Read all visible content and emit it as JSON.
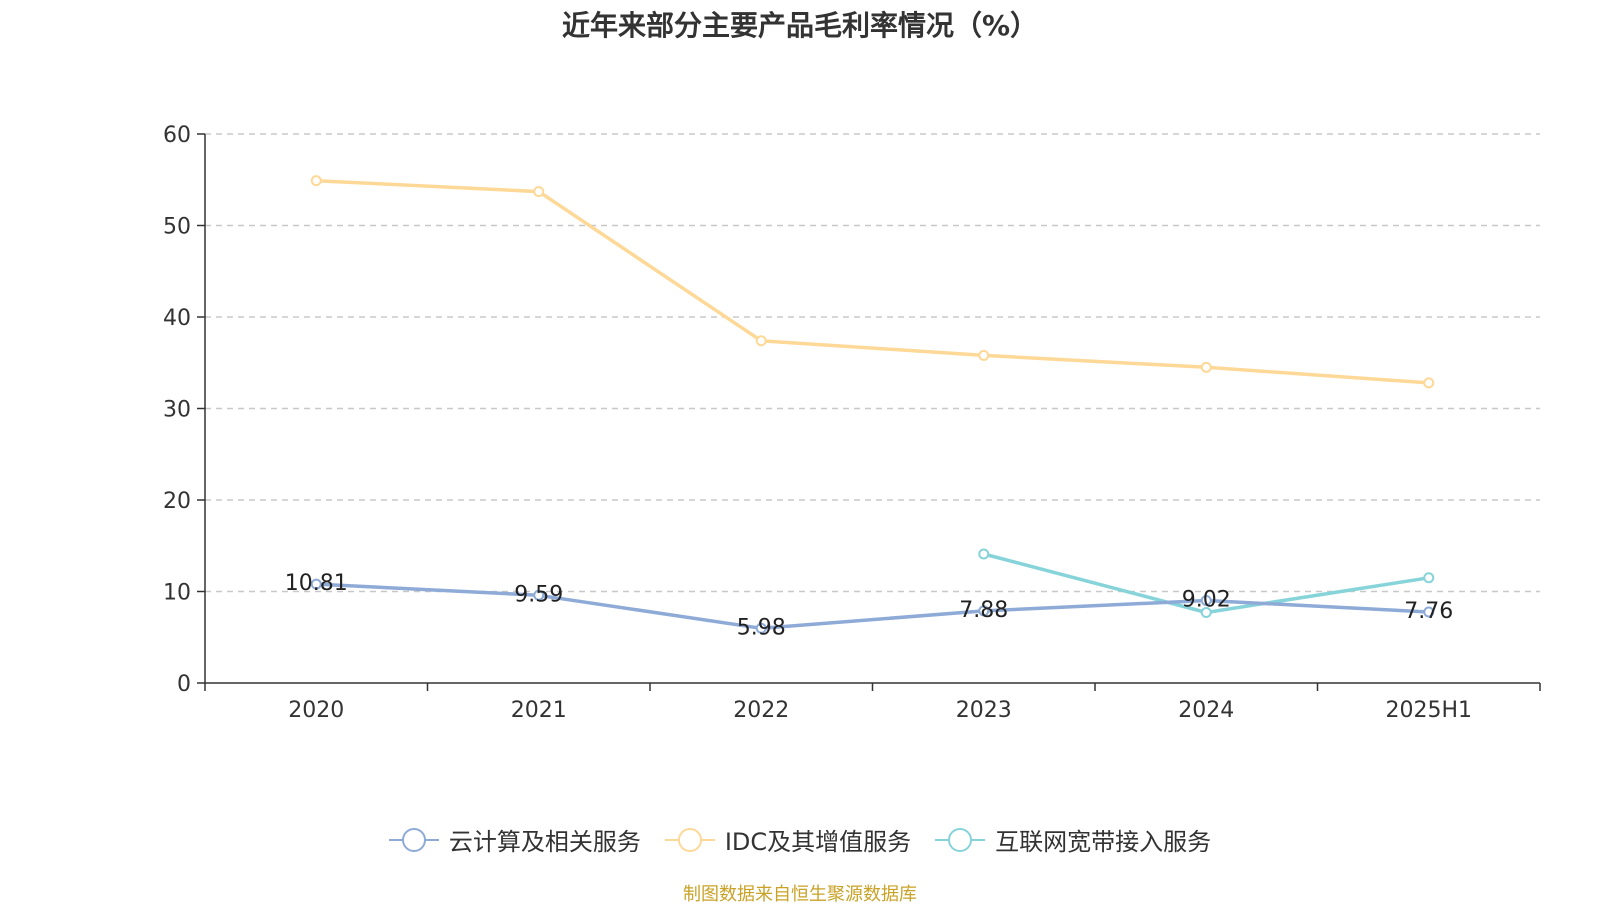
{
  "title": "近年来部分主要产品毛利率情况（%）",
  "source": "制图数据来自恒生聚源数据库",
  "chart_data": {
    "type": "line",
    "title": "近年来部分主要产品毛利率情况（%）",
    "categories": [
      "2020",
      "2021",
      "2022",
      "2023",
      "2024",
      "2025H1"
    ],
    "ylim": [
      0,
      60
    ],
    "yticks": [
      "0",
      "10",
      "20",
      "30",
      "40",
      "50",
      "60"
    ],
    "grid": true,
    "legend_position": "bottom",
    "series": [
      {
        "name": "云计算及相关服务",
        "color": "#8eaad6",
        "values": [
          10.81,
          9.59,
          5.98,
          7.88,
          9.02,
          7.76
        ],
        "labels": [
          "10.81",
          "9.59",
          "5.98",
          "7.88",
          "9.02",
          "7.76"
        ],
        "show_labels": true
      },
      {
        "name": "IDC及其增值服务",
        "color": "#fdd897",
        "values": [
          54.9,
          53.7,
          37.4,
          35.8,
          34.5,
          32.8
        ],
        "show_labels": false
      },
      {
        "name": "互联网宽带接入服务",
        "color": "#86d4d9",
        "values": [
          null,
          null,
          null,
          14.1,
          7.7,
          11.5
        ],
        "show_labels": false
      }
    ]
  }
}
